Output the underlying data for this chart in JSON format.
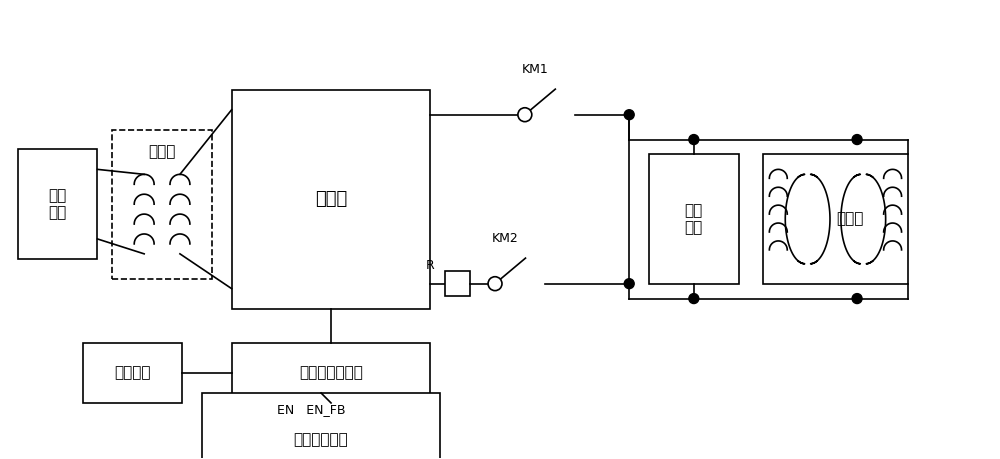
{
  "bg_color": "#ffffff",
  "line_color": "#000000",
  "figsize": [
    10.0,
    4.59
  ],
  "dpi": 100,
  "labels": {
    "ac_source": "交流\n电源",
    "transformer": "变压器",
    "converter": "变换器",
    "freewheeling": "续流\n回路",
    "brake": "制动器",
    "aux_power": "辅助电源",
    "control": "控制与驱动电路",
    "main_ctrl": "电梯主控系统",
    "en": "EN   EN_FB",
    "KM1": "KM1",
    "KM2": "KM2",
    "R": "R"
  },
  "font_size": 11,
  "font_size_small": 9
}
